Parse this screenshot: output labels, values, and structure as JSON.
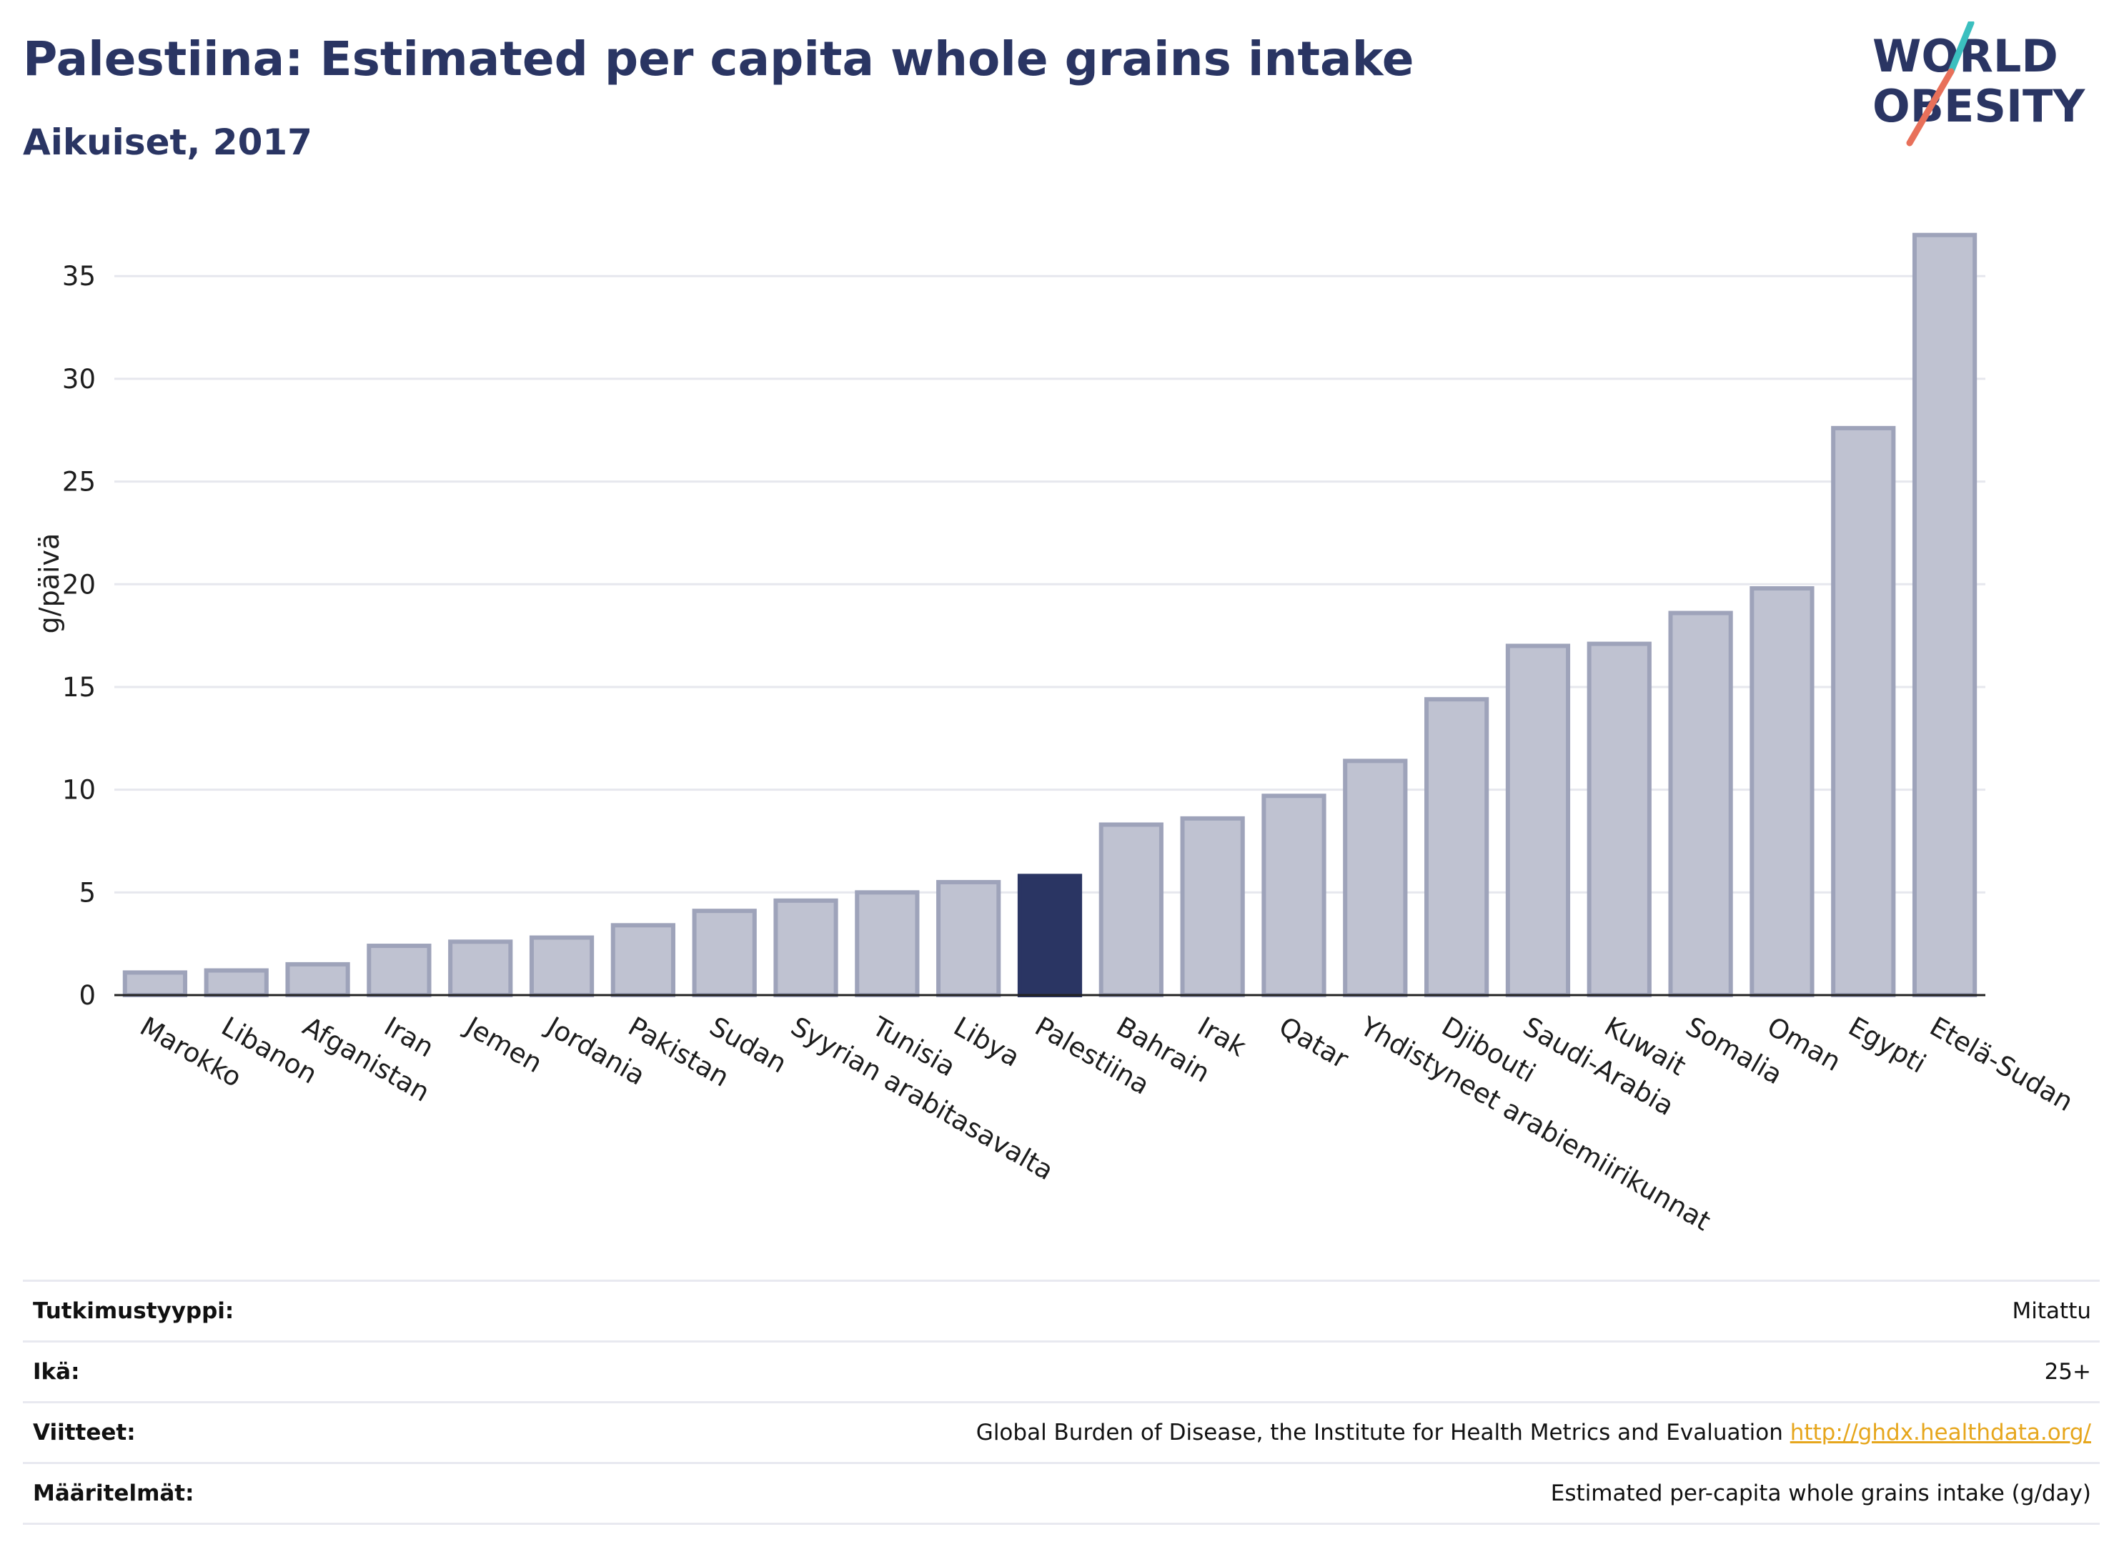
{
  "header": {
    "title": "Palestiina: Estimated per capita whole grains intake",
    "subtitle": "Aikuiset, 2017"
  },
  "logo": {
    "line1": "WORLD",
    "line2": "OBESITY",
    "colors": {
      "text": "#2a3563",
      "slash_top": "#3bbfbf",
      "slash_bottom": "#e8705a"
    }
  },
  "chart_data": {
    "type": "bar",
    "ylabel": "g/päivä",
    "xlabel": "",
    "ylim": [
      0,
      38
    ],
    "yticks": [
      0,
      5,
      10,
      15,
      20,
      25,
      30,
      35
    ],
    "grid": true,
    "highlight": "Palestiina",
    "colors": {
      "bar": "#bfc2d1",
      "bar_edge": "#9ea3ba",
      "highlight": "#2a3563",
      "grid": "#e6e7ee",
      "axis": "#222222"
    },
    "categories": [
      "Marokko",
      "Libanon",
      "Afganistan",
      "Iran",
      "Jemen",
      "Jordania",
      "Pakistan",
      "Sudan",
      "Syyrian arabitasavalta",
      "Tunisia",
      "Libya",
      "Palestiina",
      "Bahrain",
      "Irak",
      "Qatar",
      "Yhdistyneet arabiemiirikunnat",
      "Djibouti",
      "Saudi-Arabia",
      "Kuwait",
      "Somalia",
      "Oman",
      "Egypti",
      "Etelä-Sudan"
    ],
    "values": [
      1.1,
      1.2,
      1.5,
      2.4,
      2.6,
      2.8,
      3.4,
      4.1,
      4.6,
      5.0,
      5.5,
      5.8,
      8.3,
      8.6,
      9.7,
      11.4,
      14.4,
      17.0,
      17.1,
      18.6,
      19.8,
      27.6,
      37.0
    ]
  },
  "info": {
    "rows": [
      {
        "key": "Tutkimustyyppi:",
        "value": "Mitattu",
        "link": ""
      },
      {
        "key": "Ikä:",
        "value": "25+",
        "link": ""
      },
      {
        "key": "Viitteet:",
        "value": "Global Burden of Disease, the Institute for Health Metrics and Evaluation",
        "link": "http://ghdx.healthdata.org/"
      },
      {
        "key": "Määritelmät:",
        "value": "Estimated per-capita whole grains intake (g/day)",
        "link": ""
      }
    ]
  }
}
